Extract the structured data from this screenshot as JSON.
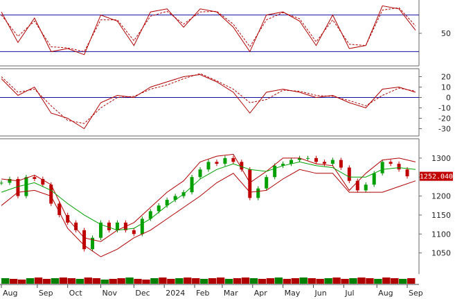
{
  "chart_data": [
    {
      "type": "line",
      "panel": "stochastic",
      "ylim": [
        0,
        100
      ],
      "reference_levels": [
        80,
        20
      ],
      "y_ticks": [
        {
          "value": 50,
          "label": "50"
        }
      ],
      "x": [
        0,
        12,
        24,
        36,
        48,
        60,
        72,
        84,
        96,
        108,
        120,
        132,
        144,
        156,
        168,
        180,
        192,
        204,
        216,
        228,
        240,
        252,
        264,
        276,
        288,
        300
      ],
      "series": [
        {
          "style": "solid",
          "color": "#b00000",
          "values": [
            85,
            35,
            75,
            20,
            25,
            15,
            80,
            70,
            30,
            85,
            90,
            60,
            90,
            85,
            60,
            20,
            80,
            85,
            70,
            30,
            80,
            25,
            30,
            95,
            90,
            55
          ]
        },
        {
          "style": "dashed",
          "color": "#b00000",
          "values": [
            80,
            45,
            70,
            28,
            26,
            20,
            72,
            72,
            38,
            78,
            86,
            65,
            85,
            86,
            65,
            28,
            72,
            84,
            74,
            36,
            72,
            32,
            30,
            88,
            92,
            62
          ]
        }
      ]
    },
    {
      "type": "line",
      "panel": "macd",
      "ylim": [
        -35,
        25
      ],
      "reference_levels": [
        0
      ],
      "y_ticks": [
        {
          "value": 20,
          "label": "20"
        },
        {
          "value": 10,
          "label": "10"
        },
        {
          "value": 0,
          "label": "0"
        },
        {
          "value": -10,
          "label": "-10"
        },
        {
          "value": -20,
          "label": "-20"
        },
        {
          "value": -30,
          "label": "-30"
        }
      ],
      "x": [
        0,
        12,
        24,
        36,
        48,
        60,
        72,
        84,
        96,
        108,
        120,
        132,
        144,
        156,
        168,
        180,
        192,
        204,
        216,
        228,
        240,
        252,
        264,
        276,
        288,
        300
      ],
      "series": [
        {
          "style": "solid",
          "color": "#b00000",
          "values": [
            18,
            2,
            10,
            -15,
            -20,
            -30,
            -5,
            2,
            0,
            10,
            15,
            20,
            22,
            15,
            5,
            -15,
            5,
            8,
            5,
            0,
            2,
            -5,
            -10,
            8,
            10,
            5
          ]
        },
        {
          "style": "dashed",
          "color": "#b00000",
          "values": [
            20,
            5,
            8,
            -8,
            -22,
            -25,
            -10,
            0,
            1,
            8,
            12,
            18,
            23,
            16,
            8,
            -5,
            -2,
            7,
            6,
            2,
            1,
            -3,
            -8,
            2,
            9,
            6
          ]
        }
      ]
    },
    {
      "type": "line",
      "panel": "price",
      "ylim": [
        1000,
        1340
      ],
      "last_price": "1252.040",
      "y_ticks": [
        {
          "value": 1300,
          "label": "1300"
        },
        {
          "value": 1250,
          "label": "1250"
        },
        {
          "value": 1200,
          "label": "1200"
        },
        {
          "value": 1150,
          "label": "1150"
        },
        {
          "value": 1100,
          "label": "1100"
        },
        {
          "value": 1050,
          "label": "1050"
        }
      ],
      "x": [
        0,
        12,
        24,
        36,
        48,
        60,
        72,
        84,
        96,
        108,
        120,
        132,
        144,
        156,
        168,
        180,
        192,
        204,
        216,
        228,
        240,
        252,
        264,
        276,
        288,
        300
      ],
      "x_ticks": [
        {
          "x": 0,
          "label": "Aug"
        },
        {
          "x": 26,
          "label": "Sep"
        },
        {
          "x": 48,
          "label": "Oct"
        },
        {
          "x": 72,
          "label": "Nov"
        },
        {
          "x": 96,
          "label": "Dec"
        },
        {
          "x": 118,
          "label": "2024"
        },
        {
          "x": 140,
          "label": "Feb"
        },
        {
          "x": 160,
          "label": "Mar"
        },
        {
          "x": 182,
          "label": "Apr"
        },
        {
          "x": 204,
          "label": "May"
        },
        {
          "x": 226,
          "label": "Jun"
        },
        {
          "x": 248,
          "label": "Jul"
        },
        {
          "x": 272,
          "label": "Aug"
        },
        {
          "x": 294,
          "label": "Sep"
        }
      ],
      "series": [
        {
          "style": "solid",
          "color": "#b00000",
          "values": [
            1245,
            1240,
            1255,
            1230,
            1140,
            1090,
            1080,
            1110,
            1130,
            1170,
            1210,
            1240,
            1290,
            1305,
            1310,
            1235,
            1265,
            1300,
            1300,
            1285,
            1280,
            1215,
            1260,
            1295,
            1300,
            1290
          ]
        },
        {
          "style": "solid",
          "color": "#00a000",
          "values": [
            1210,
            1225,
            1235,
            1215,
            1180,
            1150,
            1125,
            1110,
            1115,
            1140,
            1175,
            1205,
            1245,
            1270,
            1285,
            1270,
            1265,
            1280,
            1290,
            1280,
            1275,
            1250,
            1250,
            1270,
            1275,
            1270
          ]
        },
        {
          "style": "solid",
          "color": "#b00000",
          "values": [
            1175,
            1210,
            1215,
            1200,
            1115,
            1070,
            1040,
            1060,
            1090,
            1110,
            1140,
            1170,
            1200,
            1235,
            1260,
            1210,
            1215,
            1245,
            1270,
            1260,
            1260,
            1210,
            1210,
            1210,
            1225,
            1240
          ]
        }
      ],
      "candles": {
        "x": [
          0,
          6,
          12,
          18,
          24,
          30,
          36,
          42,
          48,
          54,
          60,
          66,
          72,
          78,
          84,
          90,
          96,
          102,
          108,
          114,
          120,
          126,
          132,
          138,
          144,
          150,
          156,
          162,
          168,
          174,
          180,
          186,
          192,
          198,
          204,
          210,
          216,
          222,
          228,
          234,
          240,
          246,
          252,
          258,
          264,
          270,
          276,
          282,
          288,
          294
        ],
        "close": [
          1235,
          1245,
          1200,
          1250,
          1245,
          1230,
          1180,
          1150,
          1130,
          1110,
          1060,
          1090,
          1130,
          1110,
          1130,
          1110,
          1100,
          1140,
          1160,
          1175,
          1190,
          1200,
          1210,
          1250,
          1270,
          1290,
          1285,
          1300,
          1290,
          1270,
          1195,
          1220,
          1250,
          1280,
          1285,
          1295,
          1300,
          1300,
          1290,
          1285,
          1295,
          1275,
          1240,
          1215,
          1230,
          1260,
          1290,
          1285,
          1270,
          1252
        ]
      },
      "volume": {
        "values": [
          8,
          7,
          6,
          8,
          9,
          7,
          8,
          9,
          8,
          7,
          9,
          8,
          6,
          7,
          8,
          9,
          7,
          6,
          8,
          9,
          7,
          8,
          9,
          8,
          7,
          8,
          9,
          7,
          8,
          9,
          8,
          7,
          8,
          9,
          7,
          8,
          9,
          8,
          7,
          8,
          9,
          7,
          8,
          9,
          8,
          7,
          9,
          8,
          7,
          8
        ]
      }
    }
  ]
}
